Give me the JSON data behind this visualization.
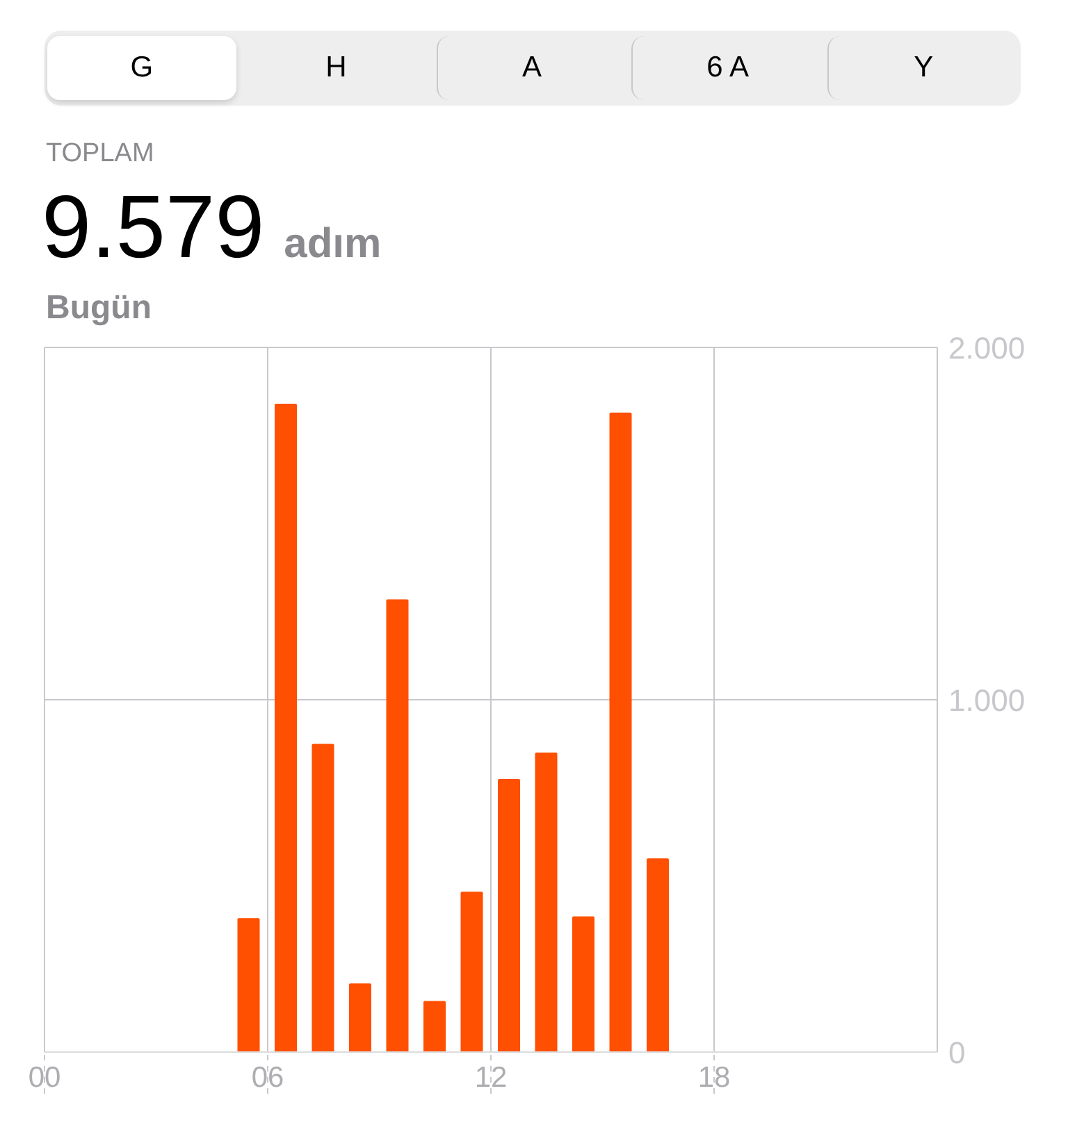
{
  "chart_data": {
    "type": "bar",
    "title": "9.579",
    "subtitle": "adım",
    "annotations": [
      "G",
      "H",
      "A",
      "6 A",
      "Y",
      "TOPLAM",
      "Bugün"
    ],
    "x": [
      5.5,
      6.5,
      7.5,
      8.5,
      9.5,
      10.5,
      11.5,
      12.5,
      13.5,
      14.5,
      15.5,
      16.5
    ],
    "values": [
      380,
      1840,
      875,
      195,
      1285,
      145,
      455,
      775,
      850,
      385,
      1815,
      550
    ],
    "color": "#ff4f00",
    "xlim": [
      0,
      24
    ],
    "xticks": [
      {
        "value": 0,
        "label": "00"
      },
      {
        "value": 6,
        "label": "06"
      },
      {
        "value": 12,
        "label": "12"
      },
      {
        "value": 18,
        "label": "18"
      }
    ],
    "ylim": [
      0,
      2000
    ],
    "yticks": [
      0,
      {
        "value": 1000,
        "label": "1.000"
      },
      {
        "value": 2000,
        "label": "2.000"
      }
    ],
    "grid": true
  }
}
